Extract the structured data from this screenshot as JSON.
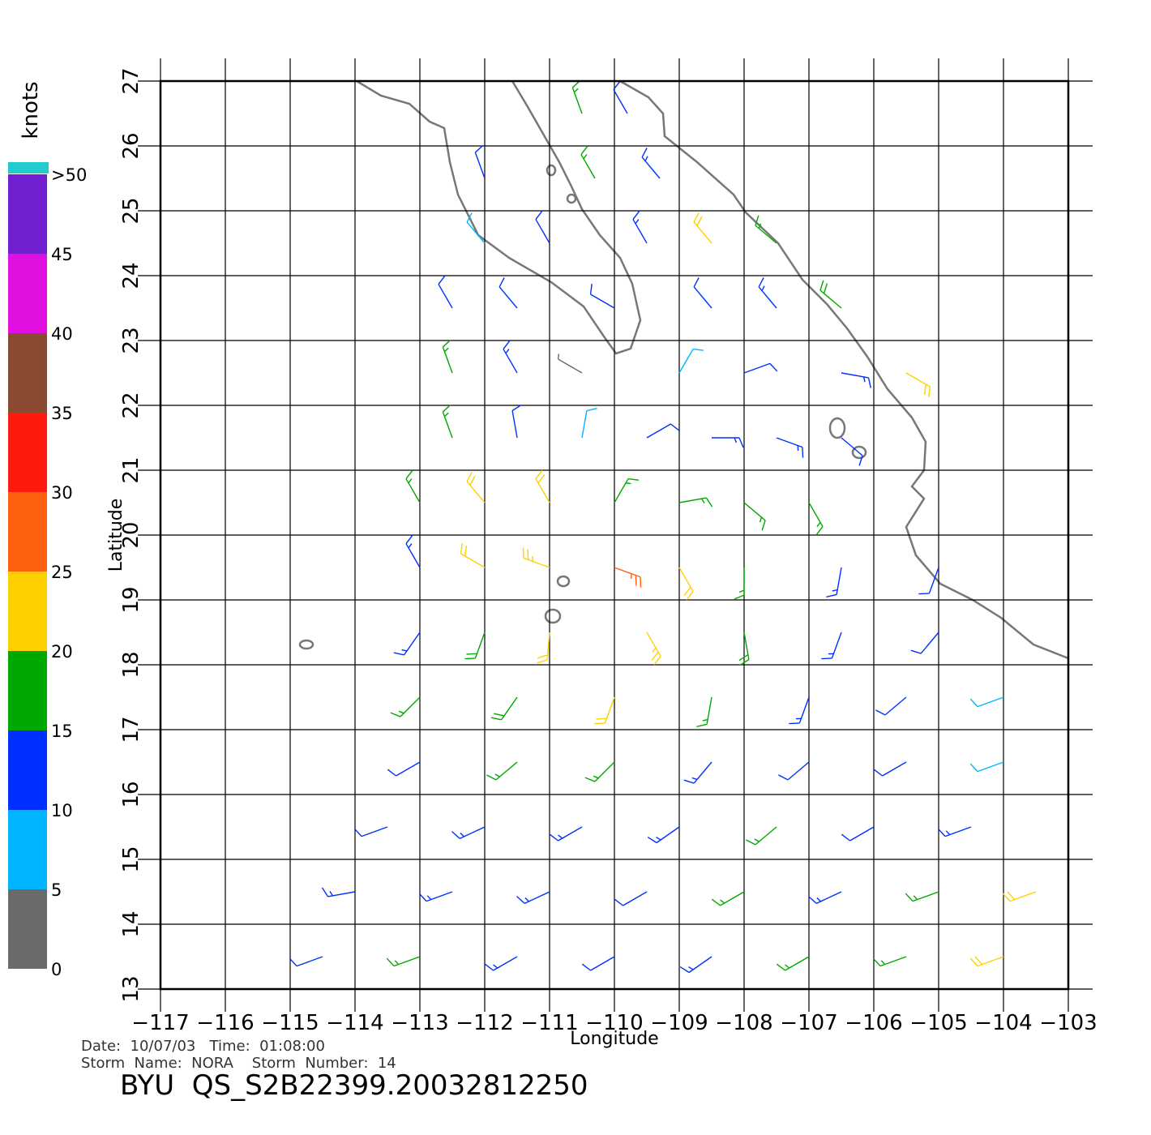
{
  "chart_data": {
    "type": "windbarb",
    "xlabel": "Longitude",
    "ylabel": "Latitude",
    "xlim": [
      -117,
      -103
    ],
    "ylim": [
      13,
      27
    ],
    "xticks": [
      {
        "value": -117,
        "label": "−117"
      },
      {
        "value": -116,
        "label": "−116"
      },
      {
        "value": -115,
        "label": "−115"
      },
      {
        "value": -114,
        "label": "−114"
      },
      {
        "value": -113,
        "label": "−113"
      },
      {
        "value": -112,
        "label": "−112"
      },
      {
        "value": -111,
        "label": "−111"
      },
      {
        "value": -110,
        "label": "−110"
      },
      {
        "value": -109,
        "label": "−109"
      },
      {
        "value": -108,
        "label": "−108"
      },
      {
        "value": -107,
        "label": "−107"
      },
      {
        "value": -106,
        "label": "−106"
      },
      {
        "value": -105,
        "label": "−105"
      },
      {
        "value": -104,
        "label": "−104"
      },
      {
        "value": -103,
        "label": "−103"
      }
    ],
    "yticks": [
      13,
      14,
      15,
      16,
      17,
      18,
      19,
      20,
      21,
      22,
      23,
      24,
      25,
      26,
      27
    ],
    "grid": true,
    "colorbar": {
      "title": "knots",
      "lim": [
        0,
        50
      ],
      "ticks": [
        0,
        5,
        10,
        15,
        20,
        25,
        30,
        35,
        40,
        45,
        {
          "value": 50,
          "label": ">50"
        }
      ],
      "colors": [
        "#6a6a6a",
        "#00b4ff",
        "#0030ff",
        "#00a800",
        "#ffd000",
        "#ff6010",
        "#ff1a10",
        "#8a4a30",
        "#e010e0",
        "#7020d0"
      ]
    },
    "barbs": [
      [
        -114.5,
        13.5,
        12,
        250
      ],
      [
        -113,
        13.5,
        15,
        250
      ],
      [
        -111.5,
        13.5,
        14,
        240
      ],
      [
        -110,
        13.5,
        12,
        240
      ],
      [
        -108.5,
        13.5,
        13,
        235
      ],
      [
        -107,
        13.5,
        16,
        240
      ],
      [
        -105.5,
        13.5,
        17,
        250
      ],
      [
        -104,
        13.5,
        21,
        250
      ],
      [
        -114,
        14.5,
        13,
        260
      ],
      [
        -112.5,
        14.5,
        14,
        250
      ],
      [
        -111,
        14.5,
        13,
        245
      ],
      [
        -109.5,
        14.5,
        12,
        240
      ],
      [
        -108,
        14.5,
        15,
        240
      ],
      [
        -106.5,
        14.5,
        14,
        245
      ],
      [
        -105,
        14.5,
        16,
        250
      ],
      [
        -103.5,
        14.5,
        22,
        250
      ],
      [
        -113.5,
        15.5,
        12,
        250
      ],
      [
        -112,
        15.5,
        13,
        245
      ],
      [
        -110.5,
        15.5,
        14,
        240
      ],
      [
        -109,
        15.5,
        13,
        235
      ],
      [
        -107.5,
        15.5,
        16,
        230
      ],
      [
        -106,
        15.5,
        12,
        240
      ],
      [
        -104.5,
        15.5,
        13,
        250
      ],
      [
        -113,
        16.5,
        12,
        240
      ],
      [
        -111.5,
        16.5,
        15,
        230
      ],
      [
        -110,
        16.5,
        16,
        225
      ],
      [
        -108.5,
        16.5,
        14,
        220
      ],
      [
        -107,
        16.5,
        12,
        230
      ],
      [
        -105.5,
        16.5,
        11,
        240
      ],
      [
        -104,
        16.5,
        9,
        250
      ],
      [
        -113,
        17.5,
        16,
        225
      ],
      [
        -111.5,
        17.5,
        19,
        215
      ],
      [
        -110,
        17.5,
        20,
        200
      ],
      [
        -108.5,
        17.5,
        17,
        190
      ],
      [
        -107,
        17.5,
        13,
        200
      ],
      [
        -105.5,
        17.5,
        12,
        230
      ],
      [
        -104,
        17.5,
        8,
        250
      ],
      [
        -113,
        18.5,
        14,
        215
      ],
      [
        -112,
        18.5,
        19,
        200
      ],
      [
        -111,
        18.5,
        22,
        185
      ],
      [
        -109.5,
        18.5,
        23,
        150
      ],
      [
        -108,
        18.5,
        18,
        170
      ],
      [
        -106.5,
        18.5,
        13,
        200
      ],
      [
        -105,
        18.5,
        12,
        220
      ],
      [
        -113,
        19.5,
        13,
        330
      ],
      [
        -112,
        19.5,
        21,
        300
      ],
      [
        -111,
        19.5,
        24,
        290
      ],
      [
        -110,
        19.5,
        27,
        110
      ],
      [
        -109,
        19.5,
        22,
        150
      ],
      [
        -108,
        19.5,
        17,
        180
      ],
      [
        -106.5,
        19.5,
        14,
        190
      ],
      [
        -105,
        19.5,
        11,
        200
      ],
      [
        -113,
        20.5,
        16,
        330
      ],
      [
        -112,
        20.5,
        20,
        320
      ],
      [
        -111,
        20.5,
        21,
        330
      ],
      [
        -110,
        20.5,
        15,
        30
      ],
      [
        -109,
        20.5,
        17,
        80
      ],
      [
        -108,
        20.5,
        16,
        130
      ],
      [
        -107,
        20.5,
        15,
        150
      ],
      [
        -112.5,
        21.5,
        16,
        340
      ],
      [
        -111.5,
        21.5,
        12,
        350
      ],
      [
        -110.5,
        21.5,
        9,
        10
      ],
      [
        -109.5,
        21.5,
        12,
        60
      ],
      [
        -108.5,
        21.5,
        14,
        90
      ],
      [
        -107.5,
        21.5,
        13,
        110
      ],
      [
        -106.5,
        21.5,
        12,
        130
      ],
      [
        -112.5,
        22.5,
        15,
        340
      ],
      [
        -111.5,
        22.5,
        13,
        330
      ],
      [
        -110.5,
        22.5,
        4,
        300
      ],
      [
        -109,
        22.5,
        9,
        30
      ],
      [
        -108,
        22.5,
        12,
        70
      ],
      [
        -106.5,
        22.5,
        14,
        100
      ],
      [
        -105.5,
        22.5,
        22,
        120
      ],
      [
        -112.5,
        23.5,
        11,
        330
      ],
      [
        -111.5,
        23.5,
        10,
        320
      ],
      [
        -110,
        23.5,
        11,
        300
      ],
      [
        -108.5,
        23.5,
        12,
        320
      ],
      [
        -107.5,
        23.5,
        13,
        320
      ],
      [
        -106.5,
        23.5,
        18,
        310
      ],
      [
        -112,
        24.5,
        9,
        320
      ],
      [
        -111,
        24.5,
        10,
        330
      ],
      [
        -109.5,
        24.5,
        14,
        330
      ],
      [
        -108.5,
        24.5,
        21,
        320
      ],
      [
        -107.5,
        24.5,
        16,
        310
      ],
      [
        -112,
        25.5,
        11,
        340
      ],
      [
        -110.3,
        25.5,
        17,
        330
      ],
      [
        -109.3,
        25.5,
        13,
        320
      ],
      [
        -110.5,
        26.5,
        15,
        340
      ],
      [
        -109.8,
        26.5,
        12,
        330
      ]
    ]
  },
  "footer": {
    "date_line": "Date:  10/07/03   Time:  01:08:00",
    "storm_line": "Storm  Name:  NORA    Storm  Number:  14",
    "file_id": "BYU  QS_S2B22399.20032812250"
  }
}
